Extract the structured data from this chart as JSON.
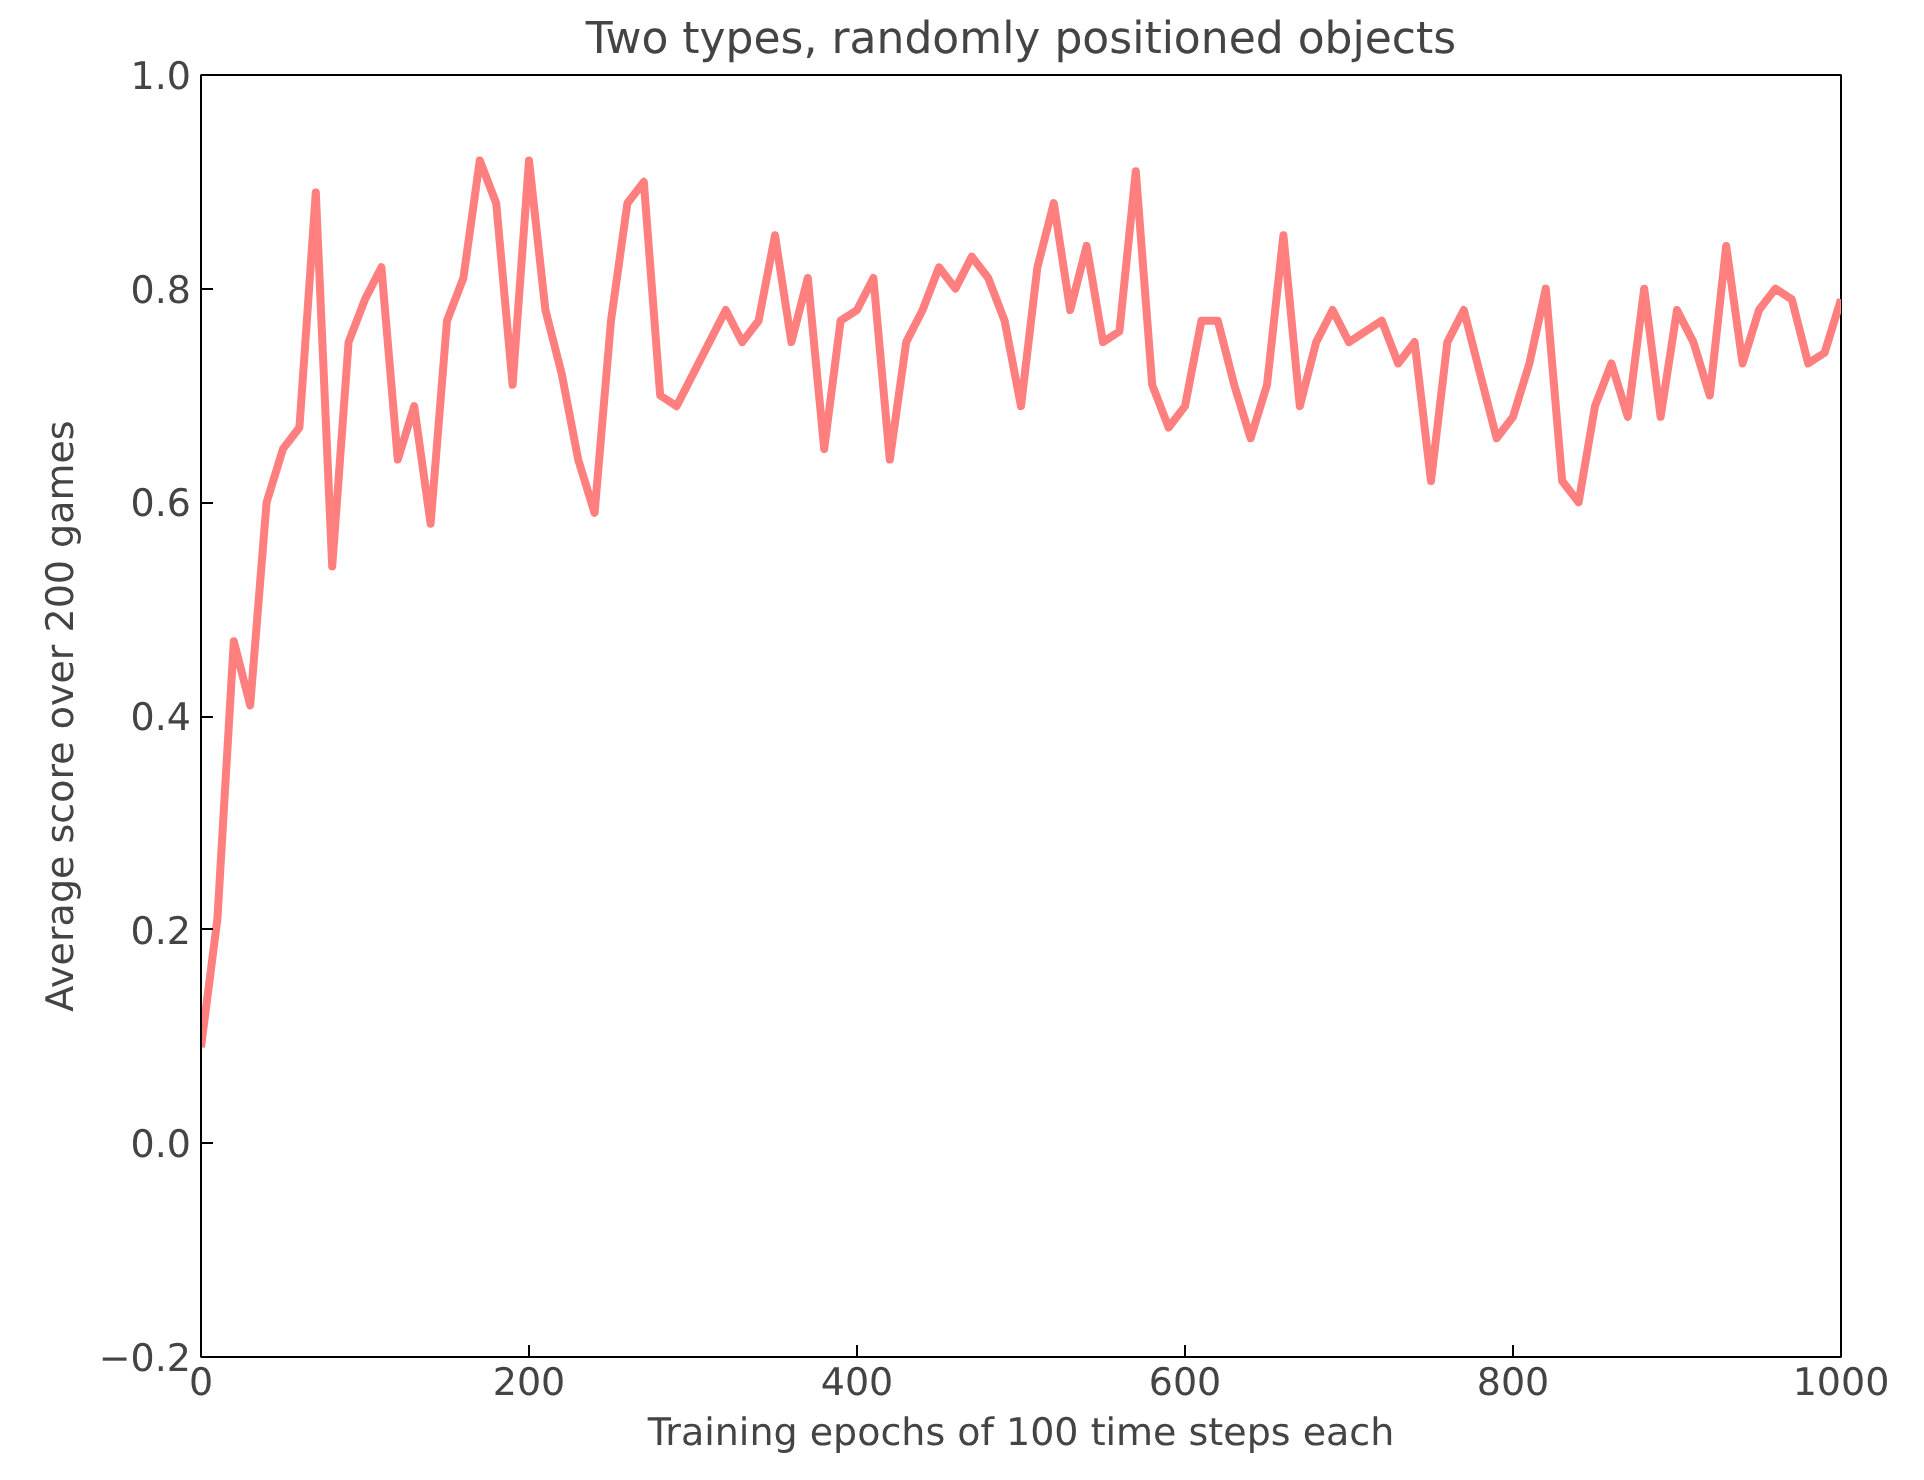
{
  "chart_data": {
    "type": "line",
    "title": "Two types, randomly positioned objects",
    "xlabel": "Training epochs of 100 time steps each",
    "ylabel": "Average score over 200 games",
    "x": [
      0,
      10,
      20,
      30,
      40,
      50,
      60,
      70,
      80,
      90,
      100,
      110,
      120,
      130,
      140,
      150,
      160,
      170,
      180,
      190,
      200,
      210,
      220,
      230,
      240,
      250,
      260,
      270,
      280,
      290,
      300,
      310,
      320,
      330,
      340,
      350,
      360,
      370,
      380,
      390,
      400,
      410,
      420,
      430,
      440,
      450,
      460,
      470,
      480,
      490,
      500,
      510,
      520,
      530,
      540,
      550,
      560,
      570,
      580,
      590,
      600,
      610,
      620,
      630,
      640,
      650,
      660,
      670,
      680,
      690,
      700,
      710,
      720,
      730,
      740,
      750,
      760,
      770,
      780,
      790,
      800,
      810,
      820,
      830,
      840,
      850,
      860,
      870,
      880,
      890,
      900,
      910,
      920,
      930,
      940,
      950,
      960,
      970,
      980,
      990,
      1000
    ],
    "series": [
      {
        "color": "#ff7f7f",
        "values": [
          0.09,
          0.21,
          0.47,
          0.41,
          0.6,
          0.65,
          0.67,
          0.89,
          0.54,
          0.75,
          0.79,
          0.82,
          0.64,
          0.69,
          0.58,
          0.77,
          0.81,
          0.92,
          0.88,
          0.71,
          0.92,
          0.78,
          0.72,
          0.64,
          0.59,
          0.77,
          0.88,
          0.9,
          0.7,
          0.69,
          0.72,
          0.75,
          0.78,
          0.75,
          0.77,
          0.85,
          0.75,
          0.81,
          0.65,
          0.77,
          0.78,
          0.81,
          0.64,
          0.75,
          0.78,
          0.82,
          0.8,
          0.83,
          0.81,
          0.77,
          0.69,
          0.82,
          0.88,
          0.78,
          0.84,
          0.75,
          0.76,
          0.91,
          0.71,
          0.67,
          0.69,
          0.77,
          0.77,
          0.71,
          0.66,
          0.71,
          0.85,
          0.69,
          0.75,
          0.78,
          0.75,
          0.76,
          0.77,
          0.73,
          0.75,
          0.62,
          0.75,
          0.78,
          0.72,
          0.66,
          0.68,
          0.73,
          0.8,
          0.62,
          0.6,
          0.69,
          0.73,
          0.68,
          0.8,
          0.68,
          0.78,
          0.75,
          0.7,
          0.84,
          0.73,
          0.78,
          0.8,
          0.79,
          0.73,
          0.74,
          0.79
        ]
      }
    ],
    "xlim": [
      0,
      1000
    ],
    "ylim": [
      -0.2,
      1.0
    ],
    "xticks": [
      0,
      200,
      400,
      600,
      800,
      1000
    ],
    "yticks": [
      {
        "value": -0.2,
        "label": "−0.2"
      },
      {
        "value": 0.0,
        "label": "0.0"
      },
      0.2,
      0.4,
      0.6,
      0.8,
      {
        "value": 1.0,
        "label": "1.0"
      }
    ],
    "grid": false,
    "marker": "none",
    "line_style": "solid"
  }
}
